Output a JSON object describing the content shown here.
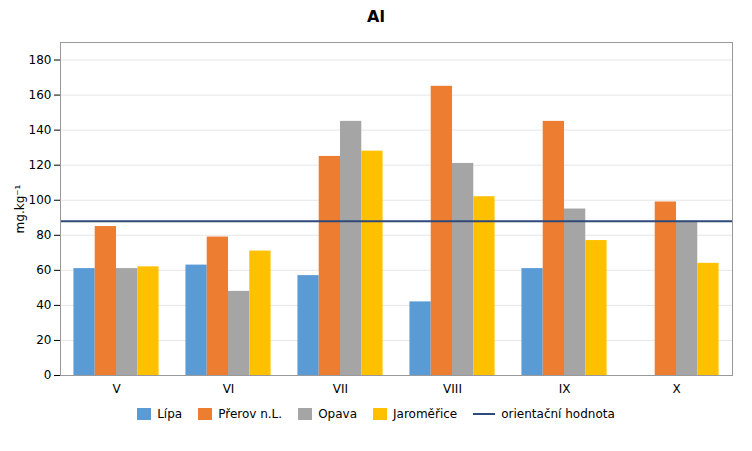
{
  "chart_data": {
    "type": "bar",
    "title": "Al",
    "ylabel": "mg.kg⁻¹",
    "categories": [
      "V",
      "VI",
      "VII",
      "VIII",
      "IX",
      "X"
    ],
    "series": [
      {
        "name": "Lípa",
        "color": "#5B9BD5",
        "values": [
          61,
          63,
          57,
          42,
          61,
          null
        ]
      },
      {
        "name": "Přerov n.L.",
        "color": "#ED7D31",
        "values": [
          85,
          79,
          125,
          165,
          145,
          99
        ]
      },
      {
        "name": "Opava",
        "color": "#A5A5A5",
        "values": [
          61,
          48,
          145,
          121,
          95,
          88
        ]
      },
      {
        "name": "Jaroměřice",
        "color": "#FFC000",
        "values": [
          62,
          71,
          128,
          102,
          77,
          64
        ]
      }
    ],
    "reference_line": {
      "name": "orientační hodnota",
      "value": 88,
      "color": "#2E4A7A"
    },
    "ylim": [
      0,
      190
    ],
    "yticks": [
      0,
      20,
      40,
      60,
      80,
      100,
      120,
      140,
      160,
      180
    ],
    "grid": true,
    "legend": "bottom"
  }
}
